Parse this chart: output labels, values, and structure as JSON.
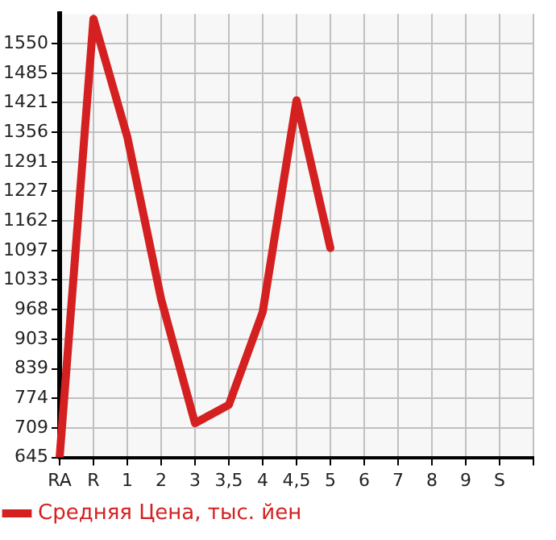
{
  "chart_data": {
    "type": "line",
    "categories": [
      "RA",
      "R",
      "1",
      "2",
      "3",
      "3,5",
      "4",
      "4,5",
      "5",
      "6",
      "7",
      "8",
      "9",
      "S",
      null
    ],
    "series": [
      {
        "name": "Средняя Цена, тыс. йен",
        "color": "#d42020",
        "values": [
          645,
          1604,
          1346,
          991,
          720,
          760,
          963,
          1426,
          1103,
          null,
          null,
          null,
          null,
          null,
          null
        ]
      }
    ],
    "ylim": [
      645,
      1615
    ],
    "yticks": [
      645,
      709,
      774,
      839,
      903,
      968,
      1033,
      1097,
      1162,
      1227,
      1291,
      1356,
      1421,
      1485,
      1550
    ],
    "grid": true,
    "legend": "bottom left",
    "marker": "none",
    "line_style": "solid"
  }
}
